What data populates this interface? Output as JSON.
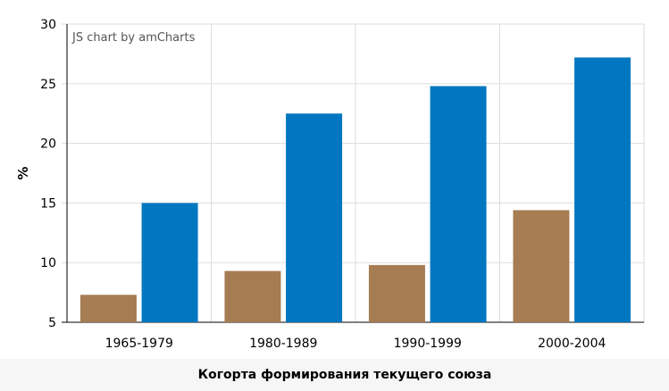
{
  "watermark": "JS chart by amCharts",
  "chart_data": {
    "type": "bar",
    "categories": [
      "1965-1979",
      "1980-1989",
      "1990-1999",
      "2000-2004"
    ],
    "series": [
      {
        "color": "#a67c52",
        "values": [
          7.3,
          9.3,
          9.8,
          14.4
        ]
      },
      {
        "color": "#0077c0",
        "values": [
          15.0,
          22.5,
          24.8,
          27.2
        ]
      }
    ],
    "xlabel": "Когорта формирования текущего союза",
    "ylabel": "%",
    "ylim": [
      5,
      30
    ],
    "yticks": [
      5,
      10,
      15,
      20,
      25,
      30
    ],
    "grid": true
  }
}
